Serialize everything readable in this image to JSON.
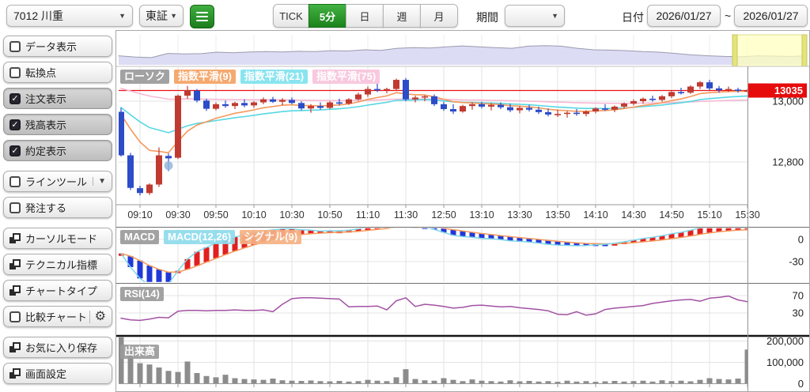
{
  "header": {
    "stock_selector": "7012 川重",
    "exchange_selector": "東証",
    "interval_buttons": [
      "TICK",
      "5分",
      "日",
      "週",
      "月"
    ],
    "interval_active": "5分",
    "period_label": "期間",
    "date_label": "日付",
    "date_from": "2026/01/27",
    "date_tilde": "~",
    "date_to": "2026/01/27"
  },
  "icons": {
    "chevron": "▼",
    "gear": "⚙",
    "check": "✓"
  },
  "sidebar": {
    "items": [
      {
        "label": "データ表示",
        "type": "checkbox",
        "checked": false
      },
      {
        "label": "転換点",
        "type": "checkbox",
        "checked": false
      },
      {
        "label": "注文表示",
        "type": "checkbox",
        "checked": true
      },
      {
        "label": "残高表示",
        "type": "checkbox",
        "checked": true
      },
      {
        "label": "約定表示",
        "type": "checkbox",
        "checked": true
      },
      {
        "label": "ラインツール",
        "type": "checkbox-dropdown",
        "checked": false,
        "gap": true
      },
      {
        "label": "発注する",
        "type": "checkbox",
        "checked": false
      },
      {
        "label": "カーソルモード",
        "type": "window",
        "gap": true
      },
      {
        "label": "テクニカル指標",
        "type": "window"
      },
      {
        "label": "チャートタイプ",
        "type": "window"
      },
      {
        "label": "比較チャート",
        "type": "checkbox-gear",
        "checked": false
      },
      {
        "label": "お気に入り保存",
        "type": "window",
        "gap": true
      },
      {
        "label": "画面設定",
        "type": "window"
      }
    ]
  },
  "chart_data": {
    "type": "candlestick+macd+rsi+volume",
    "legend_main": [
      {
        "label": "ローソク",
        "bg": "#9b9b9b"
      },
      {
        "label": "指数平滑(9)",
        "bg": "#f5a263"
      },
      {
        "label": "指数平滑(21)",
        "bg": "#7fe2ee"
      },
      {
        "label": "指数平滑(75)",
        "bg": "#f8c4dc"
      }
    ],
    "legend_macd": [
      {
        "label": "MACD",
        "bg": "#9b9b9b"
      },
      {
        "label": "MACD(12,26)",
        "bg": "#8fdcec"
      },
      {
        "label": "シグナル(9)",
        "bg": "#f5b183"
      }
    ],
    "legend_rsi": [
      {
        "label": "RSI(14)",
        "bg": "#9b9b9b"
      }
    ],
    "legend_volume": [
      {
        "label": "出来高",
        "bg": "#9b9b9b"
      }
    ],
    "x_labels": [
      {
        "label": "09:10",
        "i": 2
      },
      {
        "label": "09:30",
        "i": 6
      },
      {
        "label": "09:50",
        "i": 10
      },
      {
        "label": "10:10",
        "i": 14
      },
      {
        "label": "10:30",
        "i": 18
      },
      {
        "label": "10:50",
        "i": 22
      },
      {
        "label": "11:10",
        "i": 26
      },
      {
        "label": "11:30",
        "i": 30
      },
      {
        "label": "12:50",
        "i": 34
      },
      {
        "label": "13:10",
        "i": 38
      },
      {
        "label": "13:30",
        "i": 42
      },
      {
        "label": "13:50",
        "i": 46
      },
      {
        "label": "14:10",
        "i": 50
      },
      {
        "label": "14:30",
        "i": 54
      },
      {
        "label": "14:50",
        "i": 58
      },
      {
        "label": "15:10",
        "i": 62
      },
      {
        "label": "15:30",
        "i": 66
      }
    ],
    "y_axis_main": {
      "current_label": "13035",
      "current_value": 13035,
      "ticks": [
        {
          "label": "13,000",
          "v": 13000
        },
        {
          "label": "12,800",
          "v": 12800
        }
      ]
    },
    "y_axis_macd": [
      {
        "label": "0",
        "v": 0
      },
      {
        "label": "-30",
        "v": -30
      }
    ],
    "y_axis_rsi": [
      {
        "label": "70",
        "v": 70
      },
      {
        "label": "30",
        "v": 30
      }
    ],
    "y_axis_vol": [
      {
        "label": "200,000",
        "v": 200000
      },
      {
        "label": "100,000",
        "v": 100000
      },
      {
        "label": "0",
        "v": 0
      }
    ],
    "candles": [
      [
        12965,
        12978,
        12818,
        12822
      ],
      [
        12822,
        12830,
        12708,
        12715
      ],
      [
        12714,
        12722,
        12690,
        12698
      ],
      [
        12698,
        12730,
        12692,
        12726
      ],
      [
        12726,
        12848,
        12718,
        12822
      ],
      [
        12820,
        12828,
        12770,
        12812
      ],
      [
        12814,
        13022,
        12810,
        13018
      ],
      [
        13018,
        13050,
        13008,
        13036
      ],
      [
        13034,
        13040,
        12996,
        13002
      ],
      [
        13002,
        13008,
        12968,
        12975
      ],
      [
        12975,
        12996,
        12970,
        12990
      ],
      [
        12990,
        13002,
        12978,
        12984
      ],
      [
        12984,
        12998,
        12974,
        12994
      ],
      [
        12994,
        13006,
        12980,
        12986
      ],
      [
        12986,
        13000,
        12978,
        12996
      ],
      [
        12996,
        13012,
        12990,
        13006
      ],
      [
        13006,
        13014,
        12994,
        12998
      ],
      [
        12998,
        13010,
        12986,
        13004
      ],
      [
        13004,
        13012,
        12990,
        12994
      ],
      [
        12994,
        13000,
        12970,
        12976
      ],
      [
        12976,
        12990,
        12962,
        12984
      ],
      [
        12984,
        12996,
        12972,
        12978
      ],
      [
        12978,
        13000,
        12974,
        12996
      ],
      [
        12996,
        13008,
        12986,
        12992
      ],
      [
        12992,
        13010,
        12988,
        13006
      ],
      [
        13006,
        13028,
        13002,
        13022
      ],
      [
        13022,
        13048,
        13014,
        13040
      ],
      [
        13040,
        13058,
        13030,
        13036
      ],
      [
        13036,
        13044,
        13026,
        13040
      ],
      [
        13040,
        13074,
        13036,
        13070
      ],
      [
        13070,
        13076,
        13000,
        13006
      ],
      [
        13006,
        13018,
        12996,
        13012
      ],
      [
        13012,
        13020,
        13000,
        13016
      ],
      [
        13016,
        13022,
        12984,
        12990
      ],
      [
        12990,
        12998,
        12968,
        12974
      ],
      [
        12974,
        12990,
        12958,
        12966
      ],
      [
        12966,
        12988,
        12962,
        12984
      ],
      [
        12984,
        12996,
        12972,
        12990
      ],
      [
        12990,
        12998,
        12976,
        12982
      ],
      [
        12982,
        12994,
        12970,
        12988
      ],
      [
        12988,
        12996,
        12974,
        12980
      ],
      [
        12980,
        12992,
        12964,
        12970
      ],
      [
        12970,
        12984,
        12960,
        12978
      ],
      [
        12978,
        12988,
        12966,
        12972
      ],
      [
        12972,
        12982,
        12958,
        12964
      ],
      [
        12964,
        12976,
        12950,
        12956
      ],
      [
        12956,
        12972,
        12948,
        12958
      ],
      [
        12958,
        12968,
        12946,
        12962
      ],
      [
        12962,
        12974,
        12952,
        12958
      ],
      [
        12958,
        12970,
        12950,
        12966
      ],
      [
        12966,
        12980,
        12960,
        12976
      ],
      [
        12976,
        12990,
        12968,
        12972
      ],
      [
        12972,
        12986,
        12964,
        12982
      ],
      [
        12982,
        12996,
        12976,
        12992
      ],
      [
        12992,
        13006,
        12986,
        13000
      ],
      [
        13000,
        13012,
        12992,
        13008
      ],
      [
        13008,
        13018,
        12998,
        13004
      ],
      [
        13004,
        13020,
        12998,
        13016
      ],
      [
        13016,
        13034,
        13010,
        13030
      ],
      [
        13030,
        13044,
        13022,
        13028
      ],
      [
        13028,
        13052,
        13024,
        13048
      ],
      [
        13048,
        13066,
        13040,
        13062
      ],
      [
        13062,
        13070,
        13036,
        13042
      ],
      [
        13042,
        13050,
        13028,
        13036
      ],
      [
        13036,
        13048,
        13030,
        13040
      ],
      [
        13038,
        13044,
        13028,
        13034
      ],
      [
        13034,
        13040,
        13030,
        13035
      ]
    ],
    "volume": [
      252000,
      162000,
      96000,
      90000,
      76000,
      60000,
      55000,
      104000,
      50000,
      36000,
      30000,
      42000,
      26000,
      22000,
      20000,
      18000,
      24000,
      16000,
      14000,
      13000,
      15000,
      12000,
      11000,
      13000,
      10000,
      12000,
      18000,
      14000,
      12000,
      30000,
      68000,
      22000,
      16000,
      14000,
      26000,
      18000,
      12000,
      20000,
      14000,
      12000,
      10000,
      16000,
      11000,
      13000,
      10000,
      12000,
      9000,
      14000,
      10000,
      12000,
      9000,
      11000,
      13000,
      10000,
      12000,
      14000,
      10000,
      16000,
      12000,
      14000,
      11000,
      18000,
      26000,
      22000,
      20000,
      24000,
      160000
    ],
    "rsi": [
      18,
      14,
      13,
      16,
      20,
      19,
      34,
      36,
      36,
      35,
      36,
      36,
      37,
      36,
      36,
      37,
      33,
      50,
      63,
      65,
      65,
      64,
      63,
      62,
      44,
      45,
      45,
      46,
      37,
      58,
      65,
      45,
      50,
      48,
      45,
      41,
      43,
      47,
      48,
      46,
      44,
      45,
      42,
      40,
      38,
      35,
      27,
      26,
      33,
      25,
      28,
      38,
      41,
      43,
      45,
      47,
      52,
      55,
      58,
      60,
      61,
      57,
      64,
      66,
      69,
      60,
      56
    ],
    "navigator": [
      0.3,
      0.26,
      0.24,
      0.38,
      0.36,
      0.37,
      0.42,
      0.4,
      0.43,
      0.44,
      0.43,
      0.45,
      0.44,
      0.47,
      0.46,
      0.5,
      0.48,
      0.55,
      0.57,
      0.56,
      0.6,
      0.63,
      0.6,
      0.57,
      0.55,
      0.62,
      0.64,
      0.62,
      0.55,
      0.5,
      0.49,
      0.47,
      0.44,
      0.42,
      0.38,
      0.33,
      0.3,
      0.28,
      0.27,
      0.3,
      0.29,
      0.28,
      0.3
    ],
    "marker": {
      "index": 5,
      "price": 12788
    },
    "ema_seeds": {
      "ema9": 12990,
      "ema21": 12995,
      "ema75": 13048,
      "ema12": 12990,
      "ema26": 12996
    },
    "colors": {
      "bull": "#c13a30",
      "bear": "#2d4cc8",
      "ema9": "#f5995c",
      "ema21": "#57d7e4",
      "ema75": "#f7b8d4",
      "price_line": "#e81010",
      "price_badge": "#e60c0c",
      "macd_line": "#7fd6ea",
      "signal_line": "#f5995c",
      "hist_up": "#e02020",
      "hist_down": "#2038d8",
      "rsi": "#a352a3",
      "volume_bar": "#8c8c8c",
      "nav_fill": "#dcdcf4",
      "nav_line": "#9a9aae",
      "nav_sel": "#ffffbe",
      "nav_handle": "#e4e47c",
      "grid": "#e3e3e3"
    }
  }
}
